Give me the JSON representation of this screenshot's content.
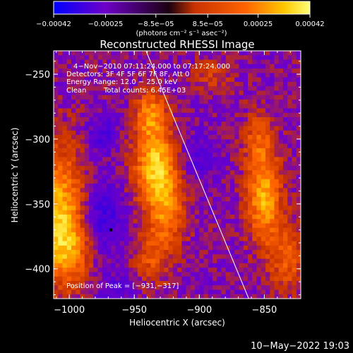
{
  "chart_data": {
    "type": "heatmap",
    "title": "Reconstructed RHESSI Image",
    "xlabel": "Heliocentric X (arcsec)",
    "ylabel": "Heliocentric Y (arcsec)",
    "xlim": [
      -1012,
      -822
    ],
    "ylim": [
      -423,
      -232
    ],
    "xticks": [
      -1000,
      -950,
      -900,
      -850
    ],
    "xtick_labels": [
      "−1000",
      "−950",
      "−900",
      "−850"
    ],
    "yticks": [
      -250,
      -300,
      -350,
      -400
    ],
    "ytick_labels": [
      "−250",
      "−300",
      "−350",
      "−400"
    ],
    "colorbar": {
      "range": [
        -0.00042,
        0.00042
      ],
      "ticks": [
        -0.00042,
        -0.00025,
        -8.5e-05,
        8.5e-05,
        0.00025,
        0.00042
      ],
      "tick_labels": [
        "−0.00042",
        "−0.00025",
        "−8.5e−05",
        "8.5e−05",
        "0.00025",
        "0.00042"
      ],
      "units": "(photons cm⁻² s⁻¹ asec⁻²)",
      "colormap": [
        "#0000ff",
        "#6e00c8",
        "#c83200",
        "#ff6400",
        "#ffc800",
        "#ffff78"
      ]
    },
    "annotations": {
      "time_range": "4−Nov−2010 07:11:24.000 to 07:17:24.000",
      "detectors": "Detectors: 3F 4F 5F 6F 7F 8F, Att 0",
      "energy": "Energy Range: 12.0 − 25.0 keV",
      "method": "Clean",
      "counts": "Total counts: 6.45E+03",
      "peak": "Position of Peak = [−931,−317]"
    },
    "peak": [
      -931,
      -317
    ],
    "limb_line": [
      [
        -941,
        -232
      ],
      [
        -862,
        -423
      ]
    ],
    "sources": [
      {
        "x": -1008,
        "y": -355,
        "sx": 14,
        "sy": 34,
        "amp": 0.00032
      },
      {
        "x": -1000,
        "y": -385,
        "sx": 12,
        "sy": 20,
        "amp": 0.00018
      },
      {
        "x": -934,
        "y": -320,
        "sx": 11,
        "sy": 22,
        "amp": 0.00036
      },
      {
        "x": -938,
        "y": -280,
        "sx": 8,
        "sy": 12,
        "amp": 0.00024
      },
      {
        "x": -925,
        "y": -356,
        "sx": 10,
        "sy": 20,
        "amp": 0.00022
      },
      {
        "x": -937,
        "y": -392,
        "sx": 9,
        "sy": 14,
        "amp": 0.00015
      },
      {
        "x": -850,
        "y": -345,
        "sx": 9,
        "sy": 24,
        "amp": 0.00033
      },
      {
        "x": -855,
        "y": -300,
        "sx": 8,
        "sy": 14,
        "amp": 0.00016
      },
      {
        "x": -832,
        "y": -392,
        "sx": 10,
        "sy": 18,
        "amp": 0.00018
      },
      {
        "x": -890,
        "y": -252,
        "sx": 10,
        "sy": 8,
        "amp": 0.00011
      },
      {
        "x": -975,
        "y": -360,
        "sx": 12,
        "sy": 18,
        "amp": -0.00018
      },
      {
        "x": -975,
        "y": -298,
        "sx": 8,
        "sy": 10,
        "amp": -0.00013
      },
      {
        "x": -900,
        "y": -315,
        "sx": 10,
        "sy": 14,
        "amp": -0.0001
      },
      {
        "x": -965,
        "y": -415,
        "sx": 12,
        "sy": 10,
        "amp": -9e-05
      }
    ]
  },
  "timestamp": "10−May−2022 19:03"
}
